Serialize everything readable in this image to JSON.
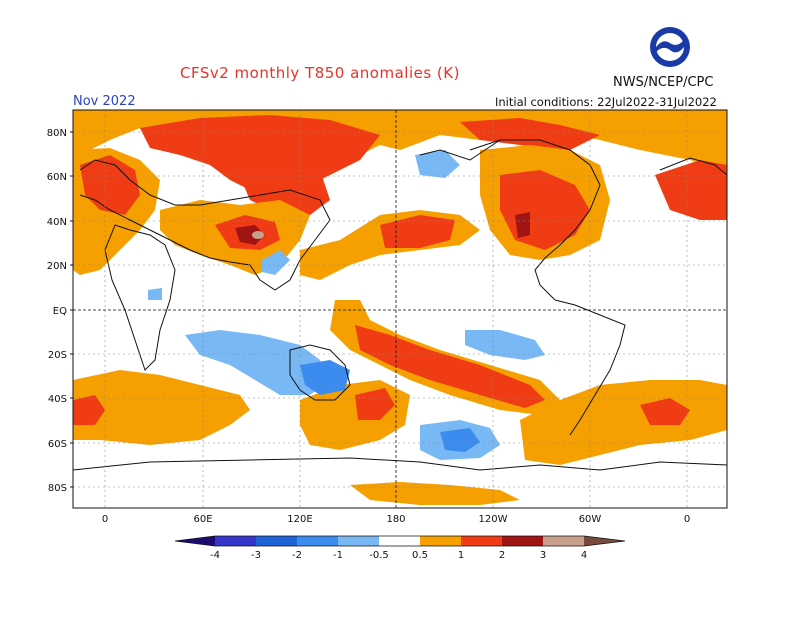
{
  "header": {
    "title": "CFSv2 monthly T850 anomalies (K)",
    "org": "NWS/NCEP/CPC",
    "month": "Nov 2022",
    "initial_conditions": "Initial conditions: 22Jul2022-31Jul2022"
  },
  "logo": {
    "text": "NOAA",
    "icon": "noaa-logo-icon"
  },
  "axes": {
    "lat_labels": [
      "80N",
      "60N",
      "40N",
      "20N",
      "EQ",
      "20S",
      "40S",
      "60S",
      "80S"
    ],
    "lon_labels": [
      "0",
      "60E",
      "120E",
      "180",
      "120W",
      "60W",
      "0"
    ]
  },
  "colorbar": {
    "ticks": [
      "-4",
      "-3",
      "-2",
      "-1",
      "-0.5",
      "0.5",
      "1",
      "2",
      "3",
      "4"
    ],
    "colors": {
      "lt_m4": "#1a0c70",
      "m4_m3": "#3535c8",
      "m3_m2": "#1e64d8",
      "m2_m1": "#3c8cf0",
      "m1_m05": "#78b8f4",
      "neutral": "#ffffff",
      "p05_p1": "#f5a000",
      "p1_p2": "#f03c14",
      "p2_p3": "#a01414",
      "p3_p4": "#c8a08c",
      "gt_p4": "#7a4a3c"
    }
  }
}
